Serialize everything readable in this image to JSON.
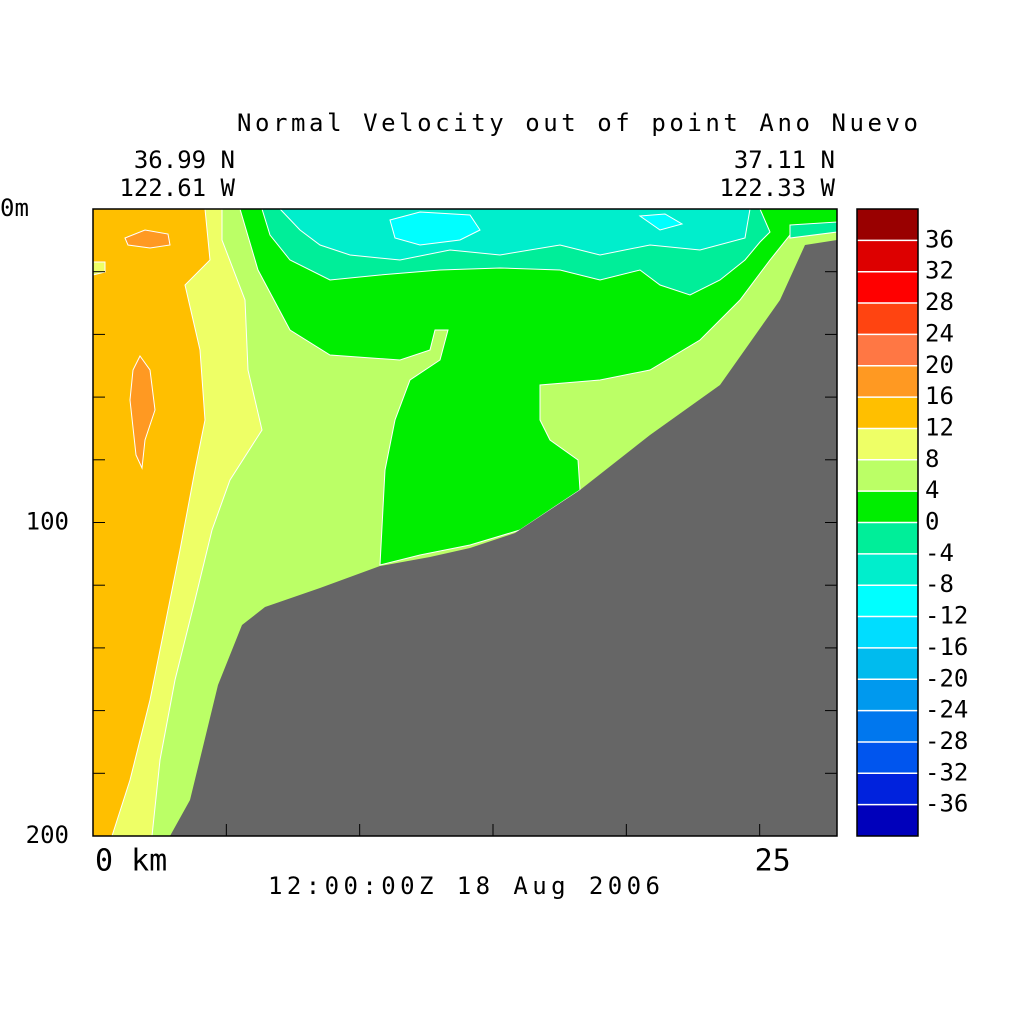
{
  "chart_data": {
    "type": "contour",
    "title": "Normal Velocity out of point Ano Nuevo",
    "start_label": [
      "36.99 N",
      "122.61 W"
    ],
    "end_label": [
      "37.11 N",
      "122.33 W"
    ],
    "time_label": "12:00:00Z  18 Aug 2006",
    "xlim": [
      0,
      27.9
    ],
    "xticks": [
      {
        "value": 0,
        "label": "0 km"
      },
      25
    ],
    "xminor_ticks": [
      5,
      10,
      15,
      20
    ],
    "ylim": [
      0,
      200
    ],
    "y_inverted": true,
    "yticks": [
      {
        "value": 0,
        "label": "0m"
      },
      100,
      200
    ],
    "yminor_ticks": [
      20,
      40,
      60,
      80,
      120,
      140,
      160,
      180
    ],
    "land_color": "#666666",
    "colorbar": {
      "levels": [
        -40,
        -36,
        -32,
        -28,
        -24,
        -20,
        -16,
        -12,
        -8,
        -4,
        0,
        4,
        8,
        12,
        16,
        20,
        24,
        28,
        32,
        36,
        40
      ],
      "colors": [
        "#0000bb",
        "#0022dd",
        "#0055ee",
        "#0077ee",
        "#0099ee",
        "#00bbee",
        "#00ddff",
        "#00ffff",
        "#00eecc",
        "#00ee99",
        "#00ee00",
        "#bbff66",
        "#eeff66",
        "#ffbf00",
        "#ff9922",
        "#ff7744",
        "#ff4411",
        "#ff0000",
        "#dd0000",
        "#990000"
      ],
      "ticks": [
        -36,
        -32,
        -28,
        -24,
        -20,
        -16,
        -12,
        -8,
        -4,
        0,
        4,
        8,
        12,
        16,
        20,
        24,
        28,
        32,
        36
      ]
    }
  }
}
